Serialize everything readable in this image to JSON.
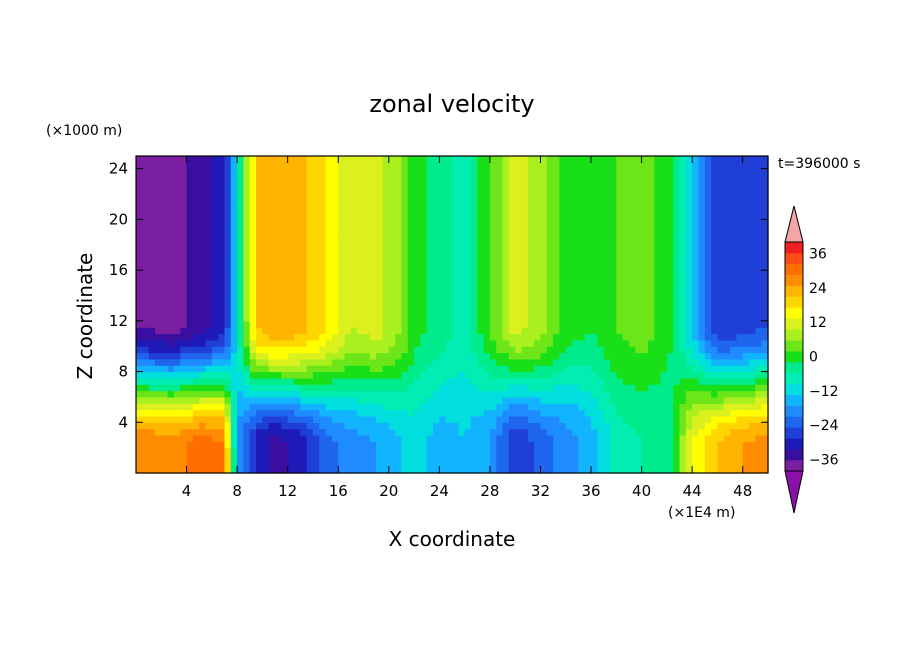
{
  "chart_data": {
    "type": "heatmap",
    "title": "zonal velocity",
    "xlabel": "X coordinate",
    "ylabel": "Z coordinate",
    "x_unit_label": "(×1E4 m)",
    "y_unit_label": "(×1000 m)",
    "time_label": "t=396000 s",
    "xlim": [
      0,
      50
    ],
    "ylim": [
      0,
      25
    ],
    "x_ticks": [
      4,
      8,
      12,
      16,
      20,
      24,
      28,
      32,
      36,
      40,
      44,
      48
    ],
    "y_ticks": [
      4,
      8,
      12,
      16,
      20,
      24
    ],
    "colorbar": {
      "min": -40,
      "max": 40,
      "step": 4,
      "tick_values": [
        36,
        24,
        12,
        0,
        -12,
        -24,
        -36
      ],
      "colors": [
        "#7b1fa2",
        "#3a0ea0",
        "#1e1ab8",
        "#1f3fd6",
        "#1e66ee",
        "#1e8cff",
        "#13b4ff",
        "#00dede",
        "#00eeb4",
        "#00eb8c",
        "#19df19",
        "#6ce619",
        "#aaf01e",
        "#dcf01e",
        "#ffff00",
        "#ffd700",
        "#ffb400",
        "#ff8c00",
        "#ff6e00",
        "#ff4b14",
        "#f01e1e"
      ],
      "over_color": "#f5a5a5",
      "under_color": "#8a10a8"
    },
    "column_profiles": [
      {
        "x": 0,
        "top": -36,
        "bottom": 32
      },
      {
        "x": 3,
        "top": -38,
        "bottom": 30
      },
      {
        "x": 5,
        "top": -34,
        "bottom": 34
      },
      {
        "x": 7,
        "top": -30,
        "bottom": 32
      },
      {
        "x": 8,
        "top": -8,
        "bottom": -16
      },
      {
        "x": 9.5,
        "top": 24,
        "bottom": -30
      },
      {
        "x": 11,
        "top": 28,
        "bottom": -34
      },
      {
        "x": 13,
        "top": 26,
        "bottom": -30
      },
      {
        "x": 15,
        "top": 20,
        "bottom": -22
      },
      {
        "x": 17,
        "top": 12,
        "bottom": -18
      },
      {
        "x": 19,
        "top": 14,
        "bottom": -16
      },
      {
        "x": 21,
        "top": 8,
        "bottom": -12
      },
      {
        "x": 22,
        "top": 2,
        "bottom": -10
      },
      {
        "x": 24,
        "top": -2,
        "bottom": -14
      },
      {
        "x": 26,
        "top": -6,
        "bottom": -12
      },
      {
        "x": 28,
        "top": 4,
        "bottom": -16
      },
      {
        "x": 30,
        "top": 14,
        "bottom": -28
      },
      {
        "x": 32,
        "top": 10,
        "bottom": -22
      },
      {
        "x": 34,
        "top": 2,
        "bottom": -18
      },
      {
        "x": 36,
        "top": 0,
        "bottom": -14
      },
      {
        "x": 38,
        "top": 4,
        "bottom": -6
      },
      {
        "x": 40,
        "top": 6,
        "bottom": -4
      },
      {
        "x": 42,
        "top": 2,
        "bottom": -4
      },
      {
        "x": 44,
        "top": -12,
        "bottom": 16
      },
      {
        "x": 46,
        "top": -28,
        "bottom": 24
      },
      {
        "x": 48,
        "top": -26,
        "bottom": 28
      },
      {
        "x": 50,
        "top": -24,
        "bottom": 30
      }
    ]
  }
}
